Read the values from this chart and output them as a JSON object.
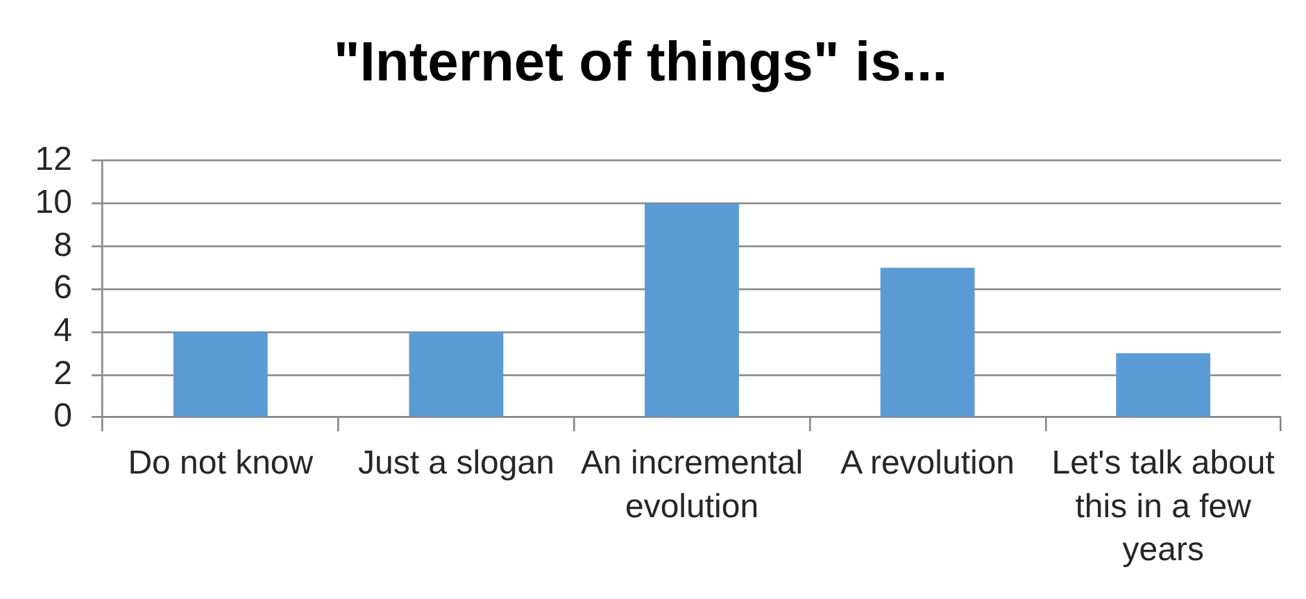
{
  "chart_data": {
    "type": "bar",
    "title": "\"Internet of things\" is...",
    "categories": [
      "Do not know",
      "Just a slogan",
      "An incremental evolution",
      "A revolution",
      "Let's talk about this in a few years"
    ],
    "values": [
      4,
      4,
      10,
      7,
      3
    ],
    "color": "#5b9bd5",
    "ylim": [
      0,
      12
    ],
    "yticks": [
      0,
      2,
      4,
      6,
      8,
      10,
      12
    ],
    "grid": "y"
  }
}
